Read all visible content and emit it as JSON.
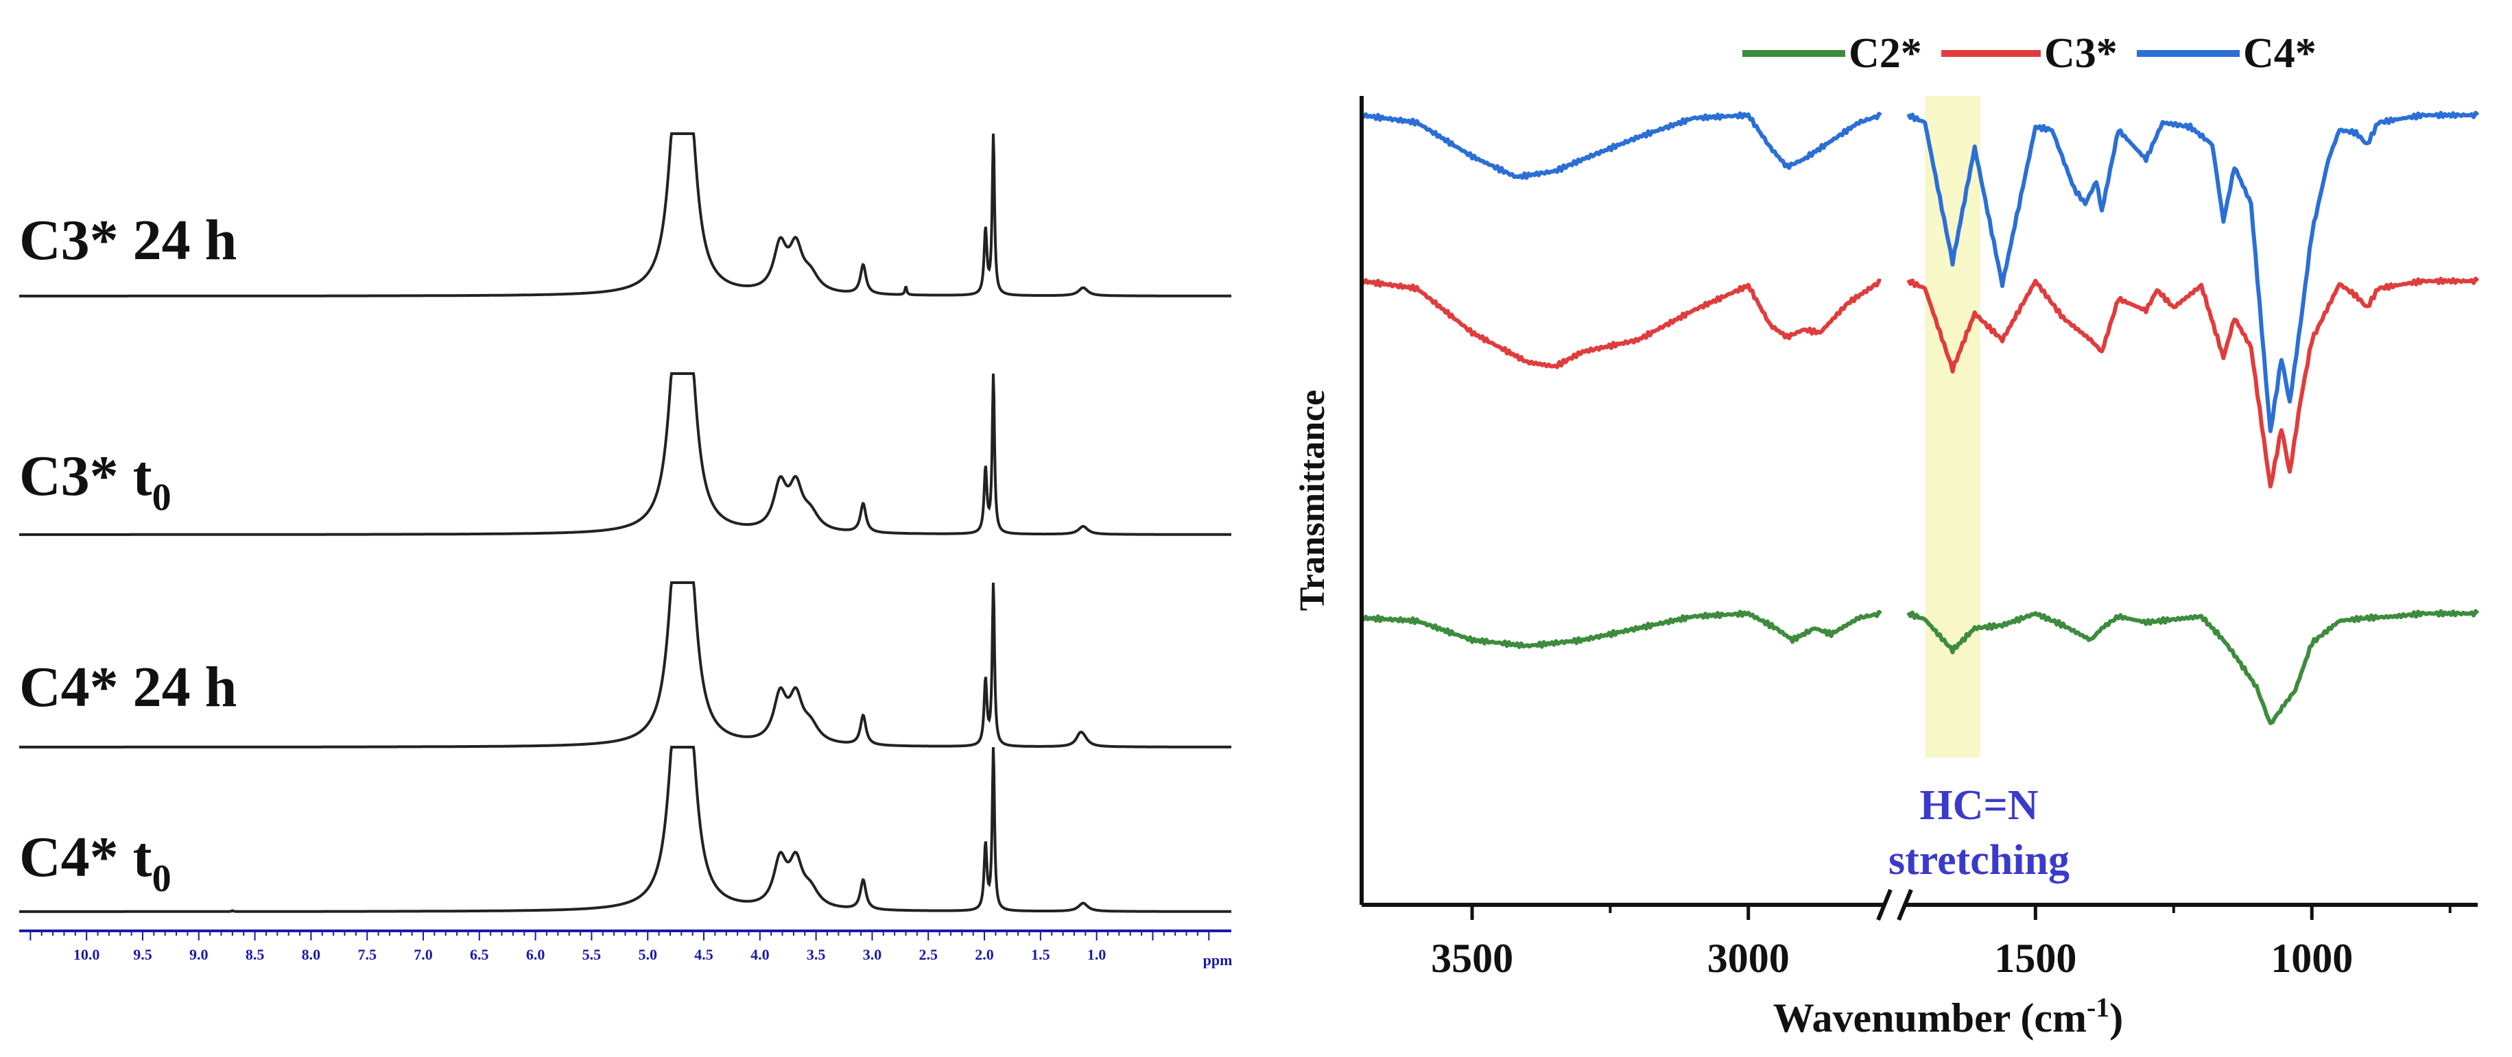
{
  "chart_data": [
    {
      "type": "line",
      "title": "",
      "xlabel": "ppm",
      "ylabel": "",
      "xlim": [
        10.6,
        -0.2
      ],
      "x_direction": "descending",
      "x_ticks": [
        "10.0",
        "9.5",
        "9.0",
        "8.5",
        "8.0",
        "7.5",
        "7.0",
        "6.5",
        "6.0",
        "5.5",
        "5.0",
        "4.5",
        "4.0",
        "3.5",
        "3.0",
        "2.5",
        "2.0",
        "1.5",
        "1.0"
      ],
      "tick_color": "#1a1aa6",
      "line_color": "#222222",
      "peaks_ppm": [
        {
          "x": 4.75,
          "w": 0.08,
          "h": 1.0
        },
        {
          "x": 4.63,
          "w": 0.08,
          "h": 1.0
        },
        {
          "x": 3.82,
          "w": 0.07,
          "h": 0.28
        },
        {
          "x": 3.68,
          "w": 0.07,
          "h": 0.26
        },
        {
          "x": 3.55,
          "w": 0.09,
          "h": 0.1
        },
        {
          "x": 3.08,
          "w": 0.03,
          "h": 0.18
        },
        {
          "x": 1.99,
          "w": 0.015,
          "h": 0.4
        },
        {
          "x": 1.92,
          "w": 0.012,
          "h": 1.0
        },
        {
          "x": 1.12,
          "w": 0.05,
          "h": 0.05
        }
      ],
      "series": [
        {
          "name": "C3* 24 h",
          "label": "C3* 24 h",
          "label_sub": ""
        },
        {
          "name": "C3* t0",
          "label": "C3* t",
          "label_sub": "0"
        },
        {
          "name": "C4* 24 h",
          "label": "C4* 24 h",
          "label_sub": ""
        },
        {
          "name": "C4* t0",
          "label": "C4* t",
          "label_sub": "0"
        }
      ]
    },
    {
      "type": "line",
      "title": "",
      "xlabel": "Wavenumber (cm",
      "xlabel_sup": "-1",
      "xlabel_close": ")",
      "ylabel": "Transmittance",
      "x_segments": [
        [
          3700,
          2760
        ],
        [
          1730,
          700
        ]
      ],
      "x_direction": "descending",
      "x_ticks": [
        "3500",
        "3000",
        "1500",
        "1000"
      ],
      "x_tick_values": [
        3500,
        3000,
        1500,
        1000
      ],
      "highlight": {
        "range": [
          1700,
          1600
        ],
        "color": "#f7f7c8"
      },
      "annotation": {
        "line1": "HC=N",
        "line2": "stretching",
        "color": "#3a3acc"
      },
      "legend": {
        "position": "top",
        "entries": [
          "C2*",
          "C3*",
          "C4*"
        ]
      },
      "series": [
        {
          "name": "C2*",
          "color": "#3d8c3d",
          "points": [
            [
              3700,
              0.03
            ],
            [
              3600,
              0.05
            ],
            [
              3500,
              0.18
            ],
            [
              3400,
              0.22
            ],
            [
              3300,
              0.18
            ],
            [
              3200,
              0.1
            ],
            [
              3100,
              0.02
            ],
            [
              3000,
              0.0
            ],
            [
              2950,
              0.1
            ],
            [
              2920,
              0.18
            ],
            [
              2880,
              0.1
            ],
            [
              2850,
              0.14
            ],
            [
              2800,
              0.03
            ],
            [
              2760,
              0.0
            ],
            [
              1730,
              0.0
            ],
            [
              1700,
              0.04
            ],
            [
              1650,
              0.25
            ],
            [
              1610,
              0.1
            ],
            [
              1560,
              0.08
            ],
            [
              1500,
              0.0
            ],
            [
              1450,
              0.08
            ],
            [
              1400,
              0.18
            ],
            [
              1380,
              0.1
            ],
            [
              1350,
              0.02
            ],
            [
              1300,
              0.06
            ],
            [
              1250,
              0.04
            ],
            [
              1200,
              0.02
            ],
            [
              1160,
              0.18
            ],
            [
              1140,
              0.28
            ],
            [
              1100,
              0.5
            ],
            [
              1075,
              0.75
            ],
            [
              1050,
              0.62
            ],
            [
              1030,
              0.52
            ],
            [
              1000,
              0.2
            ],
            [
              950,
              0.05
            ],
            [
              900,
              0.03
            ],
            [
              850,
              0.02
            ],
            [
              800,
              0.0
            ],
            [
              700,
              0.0
            ]
          ]
        },
        {
          "name": "C3*",
          "color": "#e03c3c",
          "points": [
            [
              3700,
              0.0
            ],
            [
              3600,
              0.05
            ],
            [
              3500,
              0.35
            ],
            [
              3400,
              0.55
            ],
            [
              3350,
              0.58
            ],
            [
              3300,
              0.48
            ],
            [
              3200,
              0.4
            ],
            [
              3100,
              0.2
            ],
            [
              3000,
              0.03
            ],
            [
              2960,
              0.3
            ],
            [
              2930,
              0.38
            ],
            [
              2900,
              0.33
            ],
            [
              2870,
              0.35
            ],
            [
              2820,
              0.15
            ],
            [
              2760,
              0.0
            ],
            [
              1730,
              0.0
            ],
            [
              1700,
              0.05
            ],
            [
              1650,
              0.6
            ],
            [
              1610,
              0.22
            ],
            [
              1560,
              0.4
            ],
            [
              1500,
              0.0
            ],
            [
              1450,
              0.25
            ],
            [
              1400,
              0.4
            ],
            [
              1380,
              0.48
            ],
            [
              1350,
              0.12
            ],
            [
              1300,
              0.2
            ],
            [
              1280,
              0.06
            ],
            [
              1250,
              0.18
            ],
            [
              1200,
              0.03
            ],
            [
              1160,
              0.52
            ],
            [
              1140,
              0.25
            ],
            [
              1110,
              0.45
            ],
            [
              1075,
              1.4
            ],
            [
              1055,
              1.0
            ],
            [
              1040,
              1.3
            ],
            [
              1020,
              0.8
            ],
            [
              1000,
              0.4
            ],
            [
              950,
              0.02
            ],
            [
              920,
              0.1
            ],
            [
              900,
              0.18
            ],
            [
              880,
              0.05
            ],
            [
              800,
              0.0
            ],
            [
              700,
              0.0
            ]
          ]
        },
        {
          "name": "C4*",
          "color": "#2b6fd6",
          "points": [
            [
              3700,
              0.0
            ],
            [
              3600,
              0.05
            ],
            [
              3500,
              0.28
            ],
            [
              3420,
              0.42
            ],
            [
              3350,
              0.38
            ],
            [
              3300,
              0.3
            ],
            [
              3200,
              0.15
            ],
            [
              3100,
              0.02
            ],
            [
              3000,
              0.0
            ],
            [
              2960,
              0.22
            ],
            [
              2930,
              0.35
            ],
            [
              2900,
              0.3
            ],
            [
              2860,
              0.2
            ],
            [
              2800,
              0.05
            ],
            [
              2760,
              0.0
            ],
            [
              1730,
              0.0
            ],
            [
              1700,
              0.05
            ],
            [
              1650,
              1.0
            ],
            [
              1610,
              0.22
            ],
            [
              1560,
              1.15
            ],
            [
              1500,
              0.08
            ],
            [
              1470,
              0.1
            ],
            [
              1430,
              0.5
            ],
            [
              1410,
              0.6
            ],
            [
              1390,
              0.45
            ],
            [
              1380,
              0.65
            ],
            [
              1350,
              0.1
            ],
            [
              1300,
              0.3
            ],
            [
              1270,
              0.05
            ],
            [
              1220,
              0.08
            ],
            [
              1180,
              0.2
            ],
            [
              1160,
              0.72
            ],
            [
              1140,
              0.35
            ],
            [
              1110,
              0.6
            ],
            [
              1075,
              2.15
            ],
            [
              1055,
              1.65
            ],
            [
              1040,
              1.95
            ],
            [
              1020,
              1.4
            ],
            [
              1000,
              0.8
            ],
            [
              970,
              0.3
            ],
            [
              950,
              0.1
            ],
            [
              920,
              0.12
            ],
            [
              900,
              0.2
            ],
            [
              880,
              0.05
            ],
            [
              800,
              0.0
            ],
            [
              700,
              0.0
            ]
          ]
        }
      ]
    }
  ]
}
